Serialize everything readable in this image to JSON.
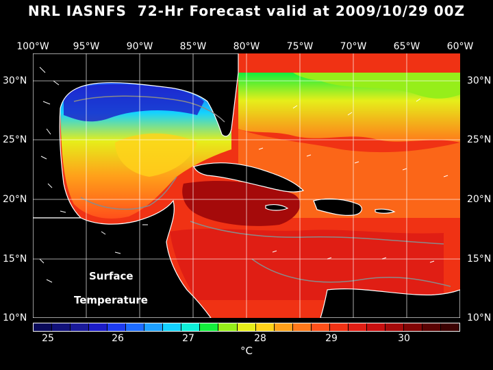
{
  "title": "NRL IASNFS  72-Hr Forecast valid at 2009/10/29 00Z",
  "lon_labels": [
    "100°W",
    "95°W",
    "90°W",
    "85°W",
    "80°W",
    "75°W",
    "70°W",
    "65°W",
    "60°W"
  ],
  "lat_labels": [
    "30°N",
    "25°N",
    "20°N",
    "15°N",
    "10°N"
  ],
  "map_label": {
    "line1": "Surface",
    "line2": "Temperature"
  },
  "colorbar": {
    "colors": [
      "#0a0a5a",
      "#12127a",
      "#1a1a9a",
      "#1c1cc8",
      "#1e3cf0",
      "#1e6cff",
      "#1ea0ff",
      "#14d2ff",
      "#10f0d8",
      "#14ee3c",
      "#96ee1a",
      "#e6ee1a",
      "#ffd21a",
      "#ffa01a",
      "#ff781a",
      "#ff501a",
      "#f03214",
      "#e01e14",
      "#c80f0f",
      "#a50a0a",
      "#820505",
      "#5a0303",
      "#3c0202"
    ],
    "ticks": [
      "25",
      "26",
      "27",
      "28",
      "29",
      "30"
    ],
    "unit": "°C"
  },
  "colors": {
    "background": "#000000",
    "land": "#000000",
    "coastline": "#ffffff",
    "contour": "#8a8a8a"
  }
}
